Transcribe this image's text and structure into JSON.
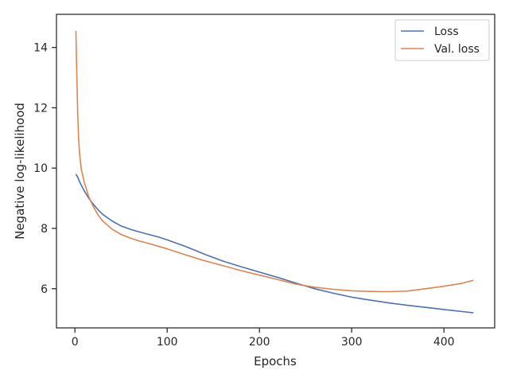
{
  "chart_data": {
    "type": "line",
    "xlabel": "Epochs",
    "ylabel": "Negative log-likelihood",
    "xlim": [
      -20,
      455
    ],
    "ylim": [
      4.7,
      15.1
    ],
    "xticks": [
      0,
      100,
      200,
      300,
      400
    ],
    "yticks": [
      6,
      8,
      10,
      12,
      14
    ],
    "legend_position": "top-right",
    "grid": false,
    "series": [
      {
        "name": "Loss",
        "color": "#4c72b0",
        "x": [
          1,
          3,
          5,
          10,
          15,
          20,
          25,
          30,
          40,
          50,
          60,
          70,
          80,
          90,
          100,
          120,
          140,
          160,
          180,
          200,
          220,
          240,
          260,
          280,
          300,
          320,
          340,
          360,
          380,
          400,
          420,
          432
        ],
        "y": [
          9.8,
          9.7,
          9.55,
          9.25,
          9.0,
          8.8,
          8.62,
          8.47,
          8.25,
          8.08,
          7.97,
          7.88,
          7.8,
          7.72,
          7.62,
          7.4,
          7.15,
          6.92,
          6.73,
          6.55,
          6.37,
          6.18,
          6.0,
          5.85,
          5.72,
          5.62,
          5.53,
          5.45,
          5.38,
          5.31,
          5.24,
          5.2
        ]
      },
      {
        "name": "Val. loss",
        "color": "#dd8452",
        "x": [
          1,
          2,
          3,
          4,
          5,
          7,
          10,
          15,
          20,
          25,
          30,
          40,
          50,
          60,
          70,
          80,
          90,
          100,
          120,
          140,
          160,
          180,
          200,
          220,
          240,
          260,
          280,
          300,
          320,
          340,
          360,
          380,
          400,
          420,
          432
        ],
        "y": [
          14.55,
          13.2,
          11.8,
          11.0,
          10.5,
          9.95,
          9.55,
          9.05,
          8.72,
          8.45,
          8.25,
          7.98,
          7.8,
          7.68,
          7.58,
          7.5,
          7.41,
          7.32,
          7.12,
          6.93,
          6.77,
          6.6,
          6.45,
          6.3,
          6.15,
          6.05,
          5.98,
          5.93,
          5.91,
          5.9,
          5.92,
          6.0,
          6.08,
          6.18,
          6.28
        ]
      }
    ]
  }
}
